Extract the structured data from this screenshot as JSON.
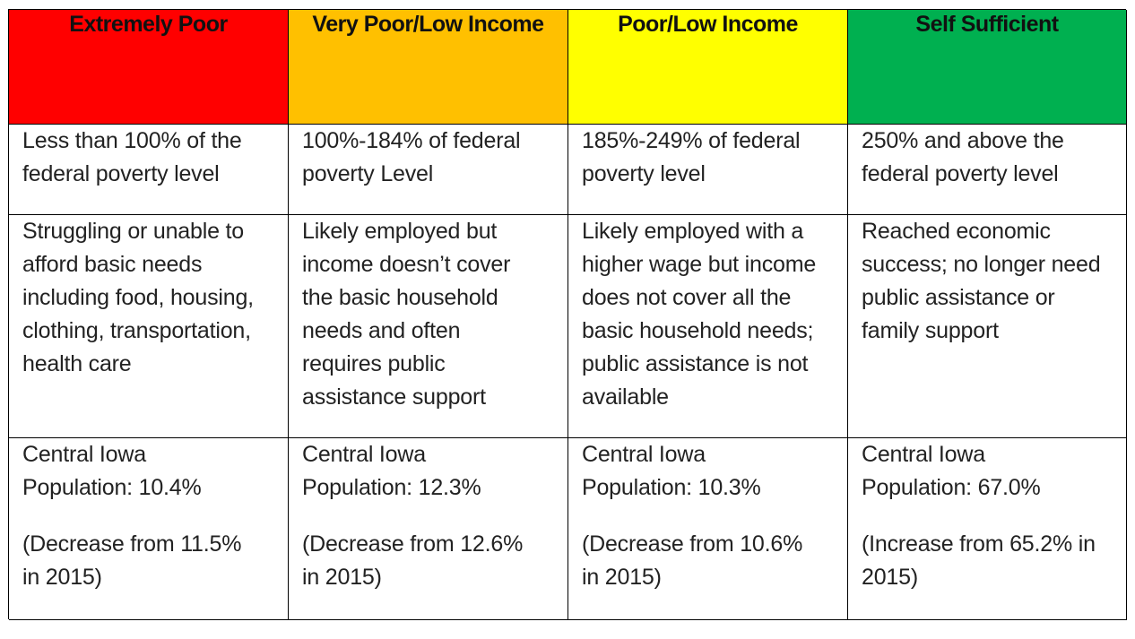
{
  "colors": {
    "extremely_poor": "#ff0000",
    "very_poor": "#ffc000",
    "poor": "#ffff00",
    "self_sufficient": "#00b050",
    "border": "#000000"
  },
  "columns": [
    {
      "header": "Extremely Poor",
      "poverty_level": "Less than 100% of the\nfederal poverty level",
      "description": "Struggling or unable to\nafford basic needs\nincluding food, housing,\nclothing, transportation,\nhealth care",
      "population": "Central Iowa\nPopulation: 10.4%",
      "change": "(Decrease from 11.5%\nin 2015)"
    },
    {
      "header": "Very Poor/Low Income",
      "poverty_level": "100%-184% of federal\npoverty Level",
      "description": "Likely employed but\nincome doesn’t cover\nthe basic household\nneeds and often\nrequires public\nassistance support",
      "population": "Central Iowa\nPopulation: 12.3%",
      "change": "(Decrease from 12.6%\nin 2015)"
    },
    {
      "header": "Poor/Low Income",
      "poverty_level": "185%-249% of federal\npoverty level",
      "description": "Likely employed with a\nhigher wage but income\ndoes not cover all the\nbasic household needs;\npublic assistance is not\navailable",
      "population": "Central Iowa\nPopulation: 10.3%",
      "change": "(Decrease from 10.6%\nin 2015)"
    },
    {
      "header": "Self Sufficient",
      "poverty_level": "250% and above the\nfederal poverty level",
      "description": "Reached economic\nsuccess; no longer need\npublic assistance or\nfamily support",
      "population": "Central Iowa\nPopulation: 67.0%",
      "change": "(Increase from 65.2% in\n2015)"
    }
  ]
}
